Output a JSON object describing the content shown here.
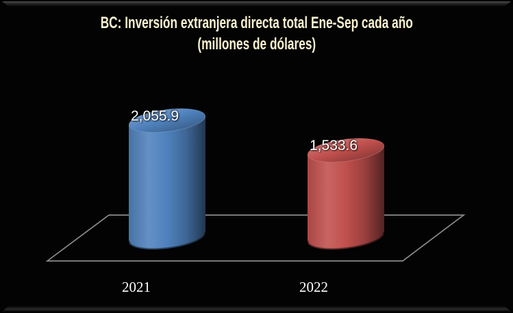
{
  "frame": {
    "background": "#000000",
    "bevel_highlight": "#4e4e4e"
  },
  "title": {
    "line1": "BC: Inversión extranjera directa total Ene-Sep cada año",
    "line2": "(millones de dólares)",
    "color": "#F8F0D0"
  },
  "chart_data": {
    "type": "bar",
    "subtype": "3d-cylinder",
    "title": "BC: Inversión extranjera directa total Ene-Sep cada año (millones de dólares)",
    "categories": [
      "2021",
      "2022"
    ],
    "values": [
      2055.9,
      1533.6
    ],
    "data_labels": [
      "2,055.9",
      "1,533.6"
    ],
    "series_colors": [
      "#4F81BD",
      "#C0504D"
    ],
    "xlabel": "",
    "ylabel": "",
    "ylim": [
      0,
      2055.9
    ],
    "grid": false,
    "legend": false,
    "axes_visible": false,
    "background": "#000000",
    "floor_outline_color": "#8C8C8C",
    "data_label_color": "#FFFFFF",
    "category_label_color": "#FFFFFF"
  }
}
